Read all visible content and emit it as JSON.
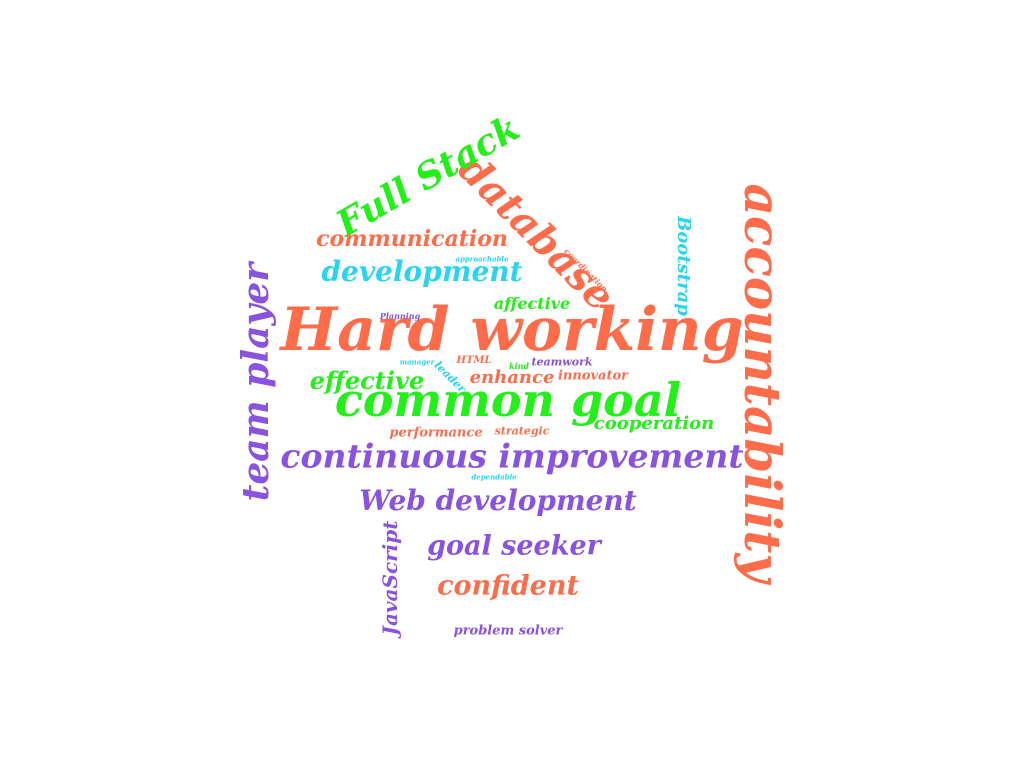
{
  "colors": {
    "orange": "#ff6c4a",
    "green": "#22f018",
    "purple": "#8a52e0",
    "cyan": "#28d4f0",
    "background": "#ffffff"
  },
  "words": {
    "hard_working": "Hard working",
    "common_goal": "common goal",
    "accountability": "accountability",
    "continuous_improvement": "continuous improvement",
    "database": "database",
    "full_stack": "Full Stack",
    "team_player": "team player",
    "web_development": "Web development",
    "development": "development",
    "communication": "communication",
    "goal_seeker": "goal seeker",
    "confident": "confident",
    "effective": "effective",
    "cooperation": "cooperation",
    "enhance": "enhance",
    "javascript": "JavaScript",
    "bootstrap": "Bootstrap",
    "affective": "affective",
    "performance": "performance",
    "problem_solver": "problem solver",
    "innovator": "innovator",
    "strategic": "strategic",
    "teamwork": "teamwork",
    "coordination": "coordination",
    "approachable": "approachable",
    "html": "HTML",
    "kind": "kind",
    "leader": "leader",
    "planning": "Planning",
    "manager": "manager",
    "dependable": "dependable"
  }
}
